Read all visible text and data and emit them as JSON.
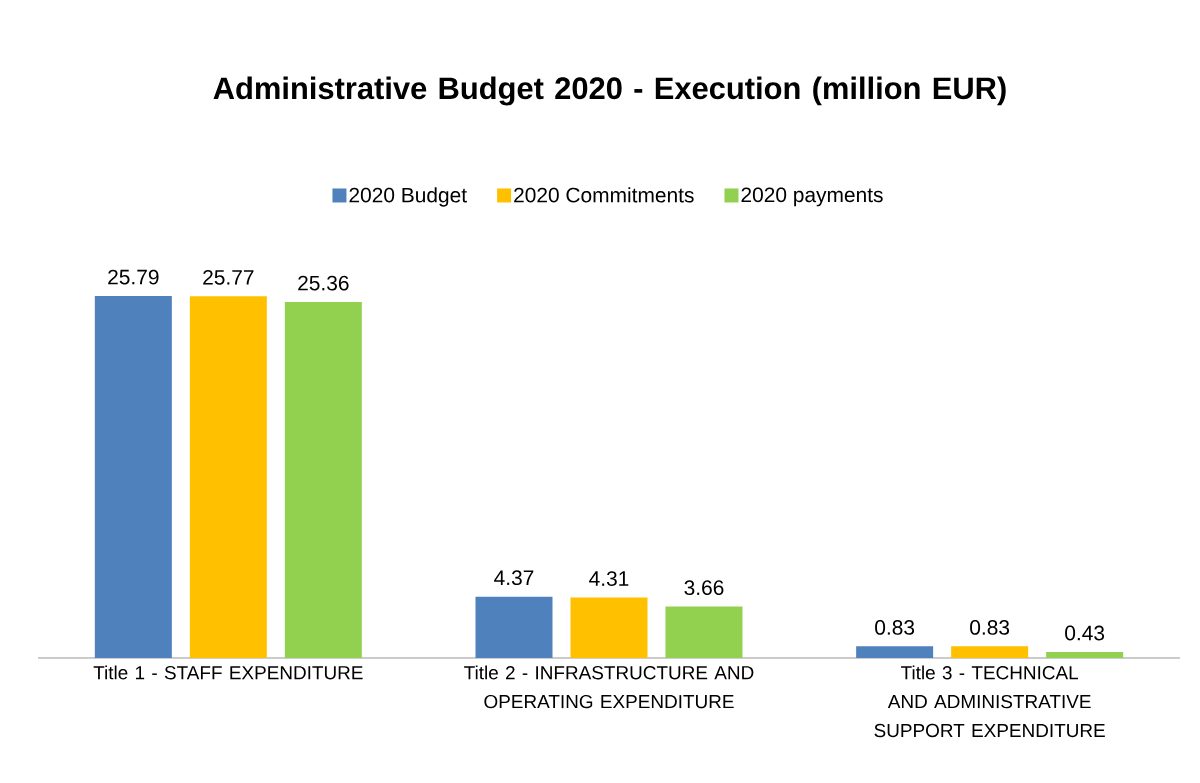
{
  "chart_data": {
    "type": "bar",
    "title": "Administrative Budget 2020 - Execution (million EUR)",
    "categories": [
      "Title 1 - STAFF EXPENDITURE",
      "Title 2 - INFRASTRUCTURE AND OPERATING EXPENDITURE",
      "Title 3 - TECHNICAL AND ADMINISTRATIVE SUPPORT EXPENDITURE"
    ],
    "series": [
      {
        "name": "2020 Budget",
        "color": "#4f81bd",
        "values": [
          25.79,
          4.37,
          0.83
        ]
      },
      {
        "name": "2020 Commitments",
        "color": "#ffc000",
        "values": [
          25.77,
          4.31,
          0.83
        ]
      },
      {
        "name": "2020 payments",
        "color": "#92d050",
        "values": [
          25.36,
          3.66,
          0.43
        ]
      }
    ],
    "data_labels": true,
    "legend": "top"
  }
}
